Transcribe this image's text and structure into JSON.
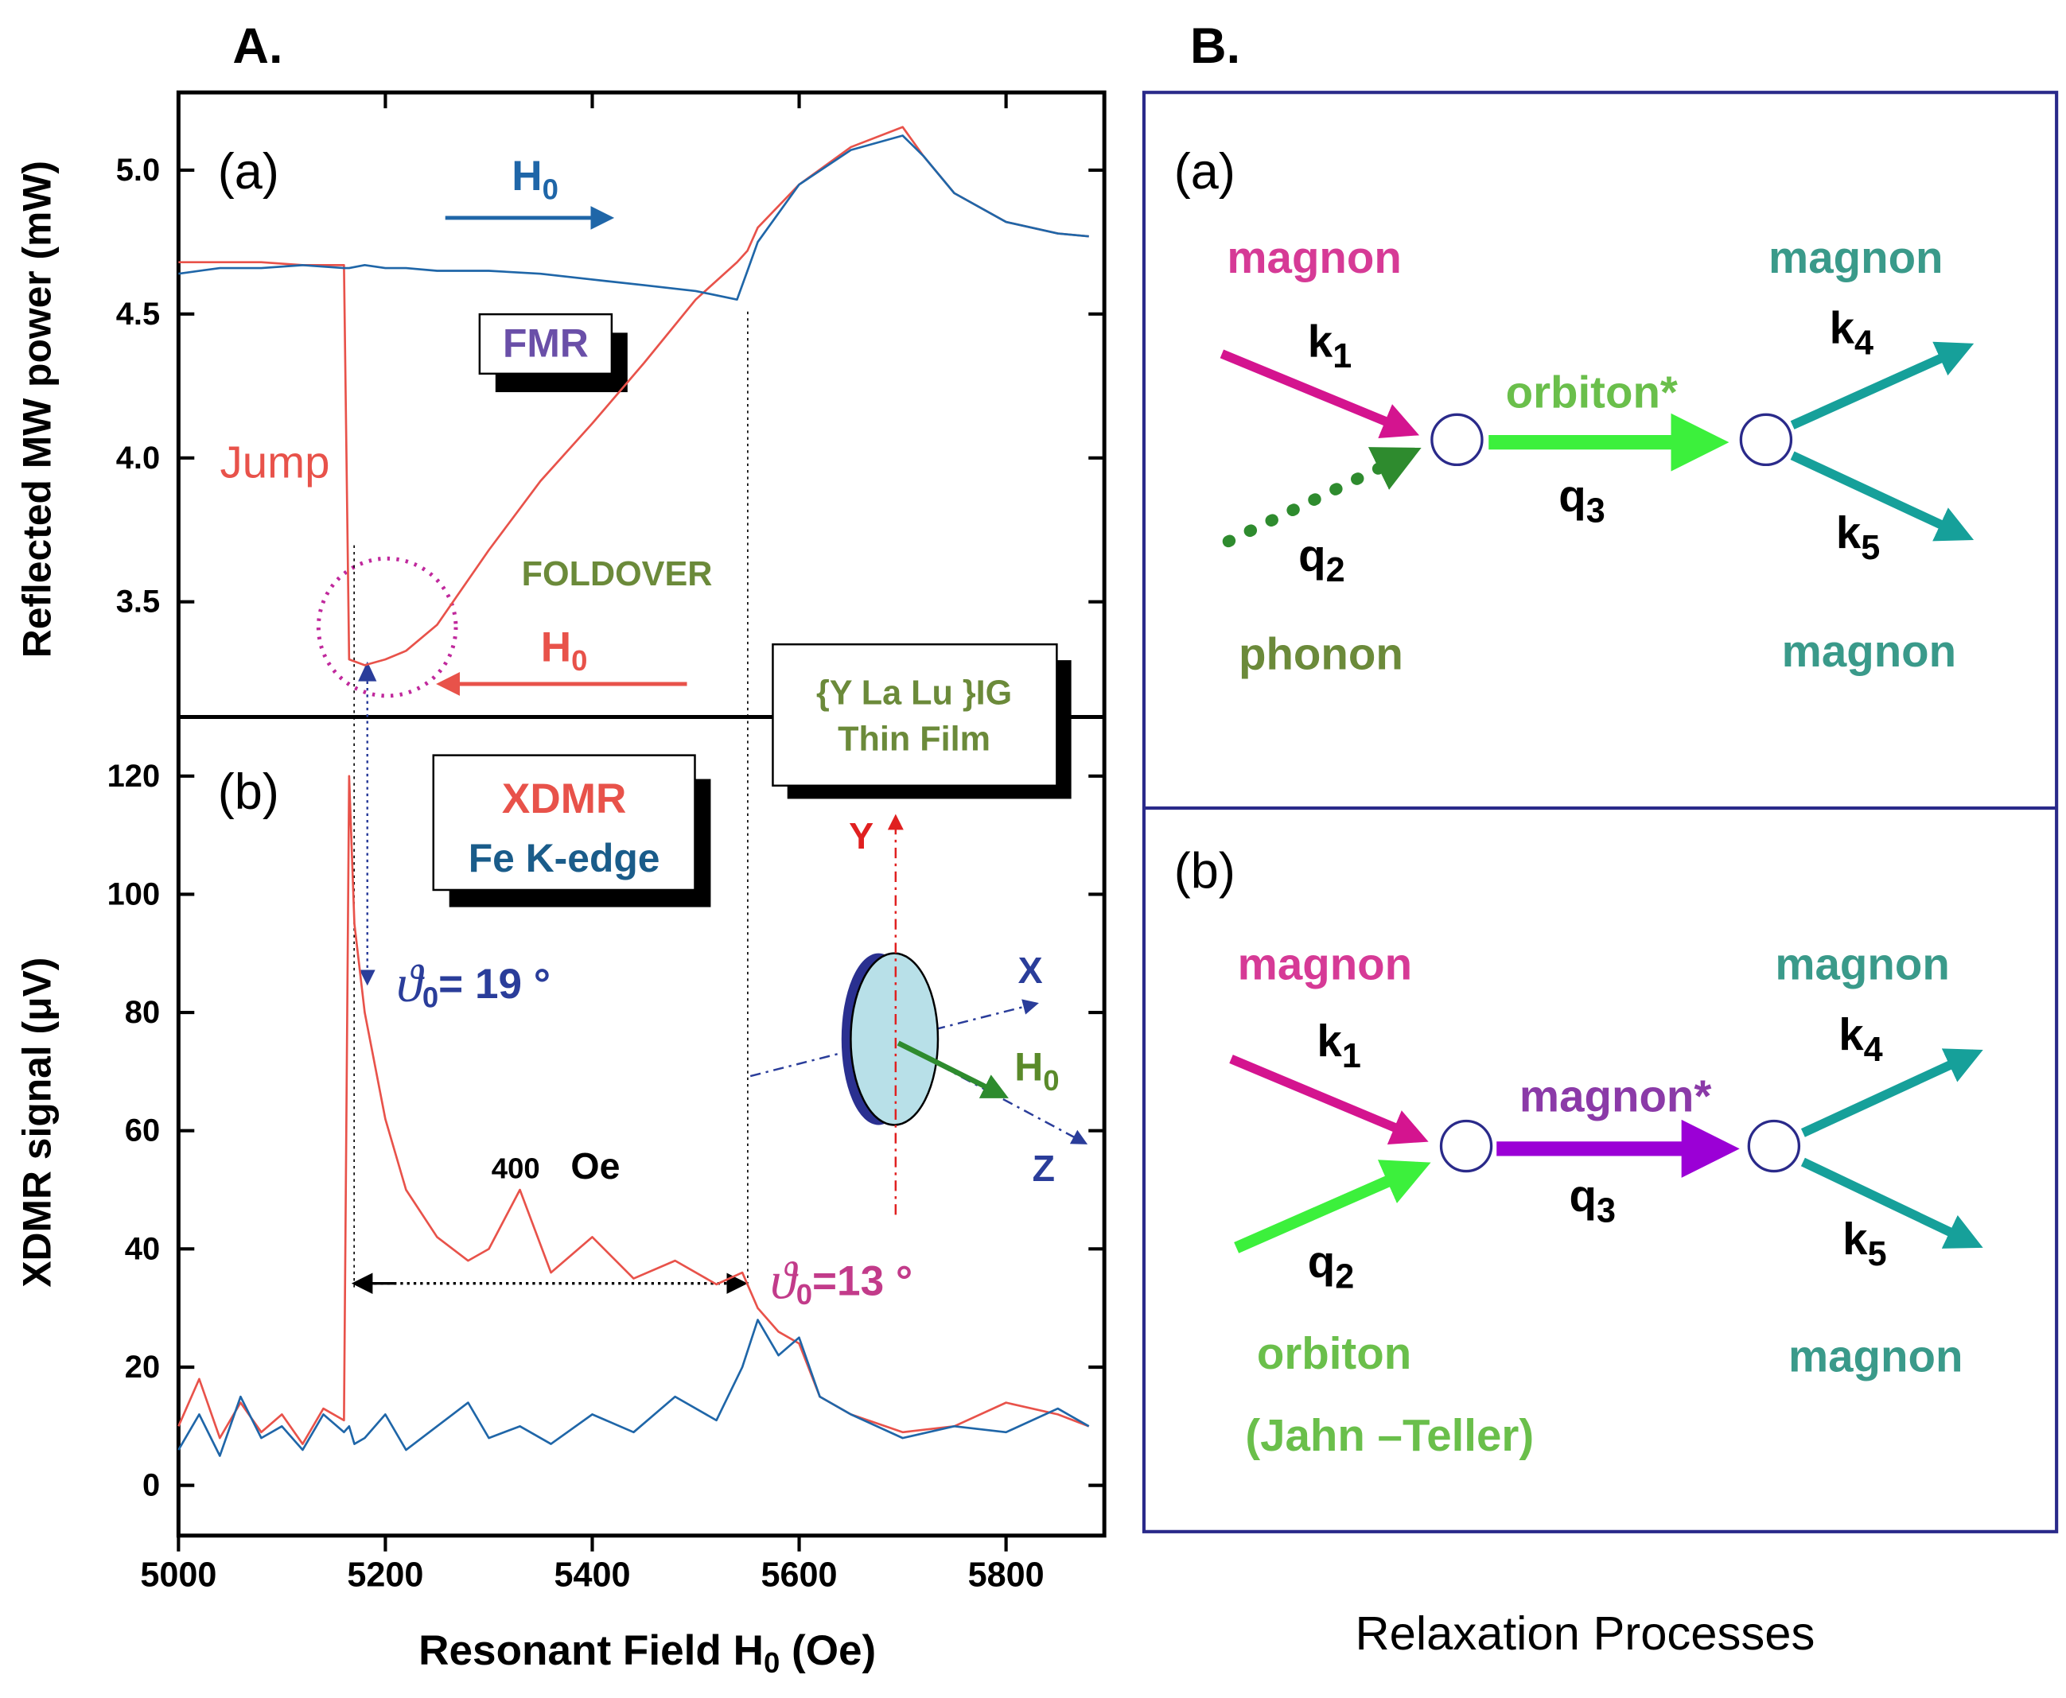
{
  "panel_a_label": "A.",
  "chart_data": [
    {
      "type": "line",
      "ylabel": "Reflected MW power (mW)",
      "xlim": [
        5000,
        5895
      ],
      "ylim": [
        3.1,
        5.27
      ],
      "yticks": [
        {
          "value": 5,
          "label": "5.0"
        },
        4.5,
        {
          "value": 4,
          "label": "4.0"
        },
        3.5
      ],
      "x": [
        5000,
        5040,
        5080,
        5120,
        5160,
        5165,
        5180,
        5200,
        5220,
        5250,
        5300,
        5350,
        5400,
        5450,
        5500,
        5540,
        5550,
        5560,
        5600,
        5650,
        5700,
        5720,
        5750,
        5800,
        5850,
        5880
      ],
      "series": [
        {
          "color": "#e8524a",
          "values": [
            4.68,
            4.68,
            4.68,
            4.67,
            4.67,
            3.3,
            3.28,
            3.3,
            3.33,
            3.42,
            3.68,
            3.92,
            4.12,
            4.33,
            4.55,
            4.68,
            4.72,
            4.8,
            4.95,
            5.08,
            5.15,
            5.05,
            4.92,
            4.82,
            4.78,
            4.77
          ]
        },
        {
          "color": "#1f66a8",
          "values": [
            4.64,
            4.66,
            4.66,
            4.67,
            4.66,
            4.66,
            4.67,
            4.66,
            4.66,
            4.65,
            4.65,
            4.64,
            4.62,
            4.6,
            4.58,
            4.55,
            4.65,
            4.75,
            4.95,
            5.07,
            5.12,
            5.05,
            4.92,
            4.82,
            4.78,
            4.77
          ]
        }
      ],
      "annotations": {
        "panel": "(a)",
        "sweep_up": [
          "H",
          "0"
        ],
        "fmr": "FMR",
        "jump": "Jump",
        "foldover": "FOLDOVER",
        "sweep_down": [
          "H",
          "0"
        ]
      }
    },
    {
      "type": "line",
      "ylabel": "XDMR signal (μV)",
      "xlabel": [
        "Resonant Field H",
        "0",
        " (Oe)"
      ],
      "xlim": [
        5000,
        5895
      ],
      "ylim": [
        -8.5,
        130
      ],
      "xticks": [
        5000,
        5200,
        5400,
        5600,
        5800
      ],
      "yticks": [
        0,
        20,
        40,
        60,
        80,
        100,
        120
      ],
      "x": [
        5000,
        5020,
        5040,
        5060,
        5080,
        5100,
        5120,
        5140,
        5160,
        5165,
        5170,
        5180,
        5200,
        5220,
        5250,
        5280,
        5300,
        5330,
        5360,
        5400,
        5440,
        5480,
        5520,
        5545,
        5560,
        5580,
        5600,
        5620,
        5650,
        5700,
        5750,
        5800,
        5850,
        5880
      ],
      "series": [
        {
          "color": "#e8524a",
          "values": [
            10,
            18,
            8,
            14,
            9,
            12,
            7,
            13,
            11,
            120,
            95,
            80,
            62,
            50,
            42,
            38,
            40,
            50,
            36,
            42,
            35,
            38,
            34,
            36,
            30,
            26,
            24,
            15,
            12,
            9,
            10,
            14,
            12,
            10
          ]
        },
        {
          "color": "#1f66a8",
          "values": [
            6,
            12,
            5,
            15,
            8,
            10,
            6,
            12,
            9,
            10,
            7,
            8,
            12,
            6,
            10,
            14,
            8,
            10,
            7,
            12,
            9,
            15,
            11,
            20,
            28,
            22,
            25,
            15,
            12,
            8,
            10,
            9,
            13,
            10
          ]
        }
      ],
      "annotations": {
        "panel": "(b)",
        "xdmr": "XDMR",
        "edge": "Fe K-edge",
        "angle_high": [
          "ϑ",
          "0",
          "= 19 °"
        ],
        "width": [
          "400",
          "Oe"
        ],
        "angle_low": [
          "ϑ",
          "0",
          "=13 °"
        ],
        "sample": [
          "{Y La Lu }IG",
          "Thin Film"
        ],
        "axes": [
          "Y",
          "X",
          "Z"
        ],
        "field": [
          "H",
          "0"
        ]
      }
    }
  ],
  "diagram": {
    "title": "B.",
    "caption": "Relaxation Processes",
    "panels": [
      {
        "label": "(a)",
        "in_top": "magnon",
        "k_in_top": [
          "k",
          "1"
        ],
        "k_in_bottom": [
          "q",
          "2"
        ],
        "in_bottom": "phonon",
        "mid": "orbiton*",
        "q_mid": [
          "q",
          "3"
        ],
        "out_top": "magnon",
        "k_out_top": [
          "k",
          "4"
        ],
        "k_out_bottom": [
          "k",
          "5"
        ],
        "out_bottom": "magnon"
      },
      {
        "label": "(b)",
        "in_top": "magnon",
        "k_in_top": [
          "k",
          "1"
        ],
        "k_in_bottom": [
          "q",
          "2"
        ],
        "in_bottom": "orbiton",
        "in_bottom_note": "(Jahn –Teller)",
        "mid": "magnon*",
        "q_mid": [
          "q",
          "3"
        ],
        "out_top": "magnon",
        "k_out_top": [
          "k",
          "4"
        ],
        "k_out_bottom": [
          "k",
          "5"
        ],
        "out_bottom": "magnon"
      }
    ]
  }
}
